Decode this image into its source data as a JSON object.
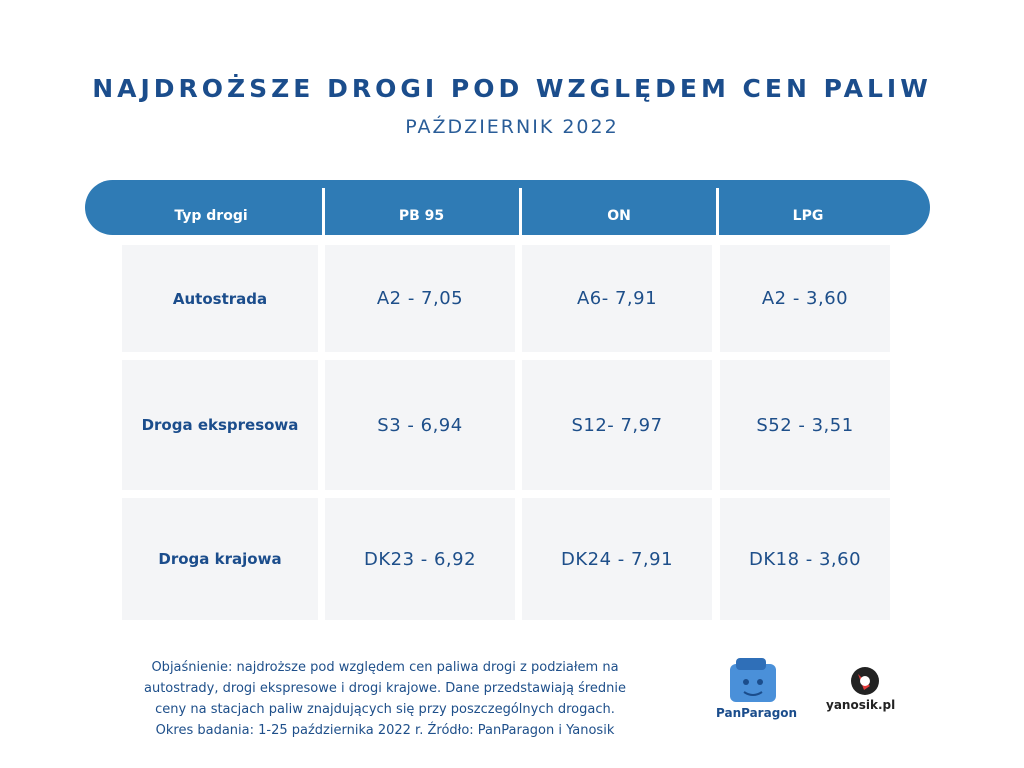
{
  "header": {
    "title": "NAJDROŻSZE DROGI POD WZGLĘDEM CEN PALIW",
    "subtitle": "PAŹDZIERNIK 2022"
  },
  "table": {
    "columns": [
      "Typ drogi",
      "PB 95",
      "ON",
      "LPG"
    ],
    "rows": [
      [
        "Autostrada",
        "A2 - 7,05",
        "A6- 7,91",
        "A2 - 3,60"
      ],
      [
        "Droga ekspresowa",
        "S3 - 6,94",
        "S12- 7,97",
        "S52 - 3,51"
      ],
      [
        "Droga krajowa",
        "DK23 - 6,92",
        "DK24 - 7,91",
        "DK18 - 3,60"
      ]
    ]
  },
  "footnote": [
    "Objaśnienie: najdroższe pod względem cen paliwa drogi z podziałem na",
    "autostrady, drogi ekspresowe i drogi krajowe. Dane przedstawiają średnie",
    "ceny na stacjach paliw znajdujących się przy poszczególnych drogach.",
    "Okres badania: 1-25 października 2022 r. Źródło: PanParagon i Yanosik"
  ],
  "logos": [
    "PanParagon",
    "yanosik.pl"
  ]
}
